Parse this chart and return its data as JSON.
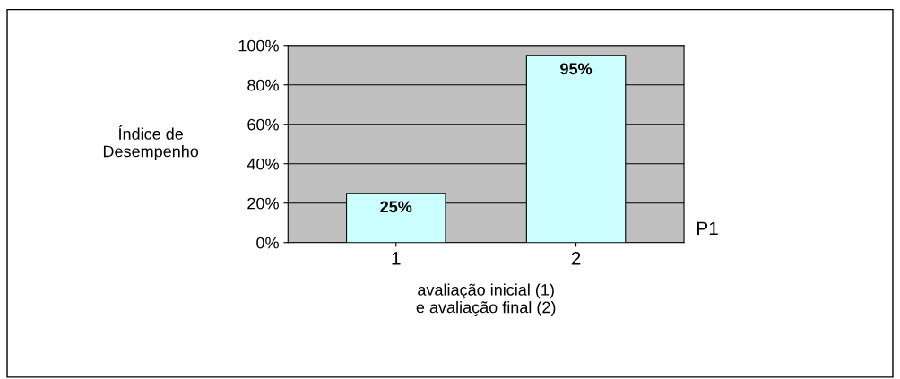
{
  "chart_data": {
    "type": "bar",
    "categories": [
      "1",
      "2"
    ],
    "series": [
      {
        "name": "P1",
        "color": "#ccffff",
        "values": [
          25,
          95
        ],
        "value_labels": [
          "25%",
          "95%"
        ]
      }
    ],
    "ylabel": "Índice de\nDesempenho",
    "xlabel": "avaliação inicial (1)\ne avaliação final (2)",
    "ylim": [
      0,
      100
    ],
    "yticks": [
      {
        "value": 0,
        "label": "0%"
      },
      {
        "value": 20,
        "label": "20%"
      },
      {
        "value": 40,
        "label": "40%"
      },
      {
        "value": 60,
        "label": "60%"
      },
      {
        "value": 80,
        "label": "80%"
      },
      {
        "value": 100,
        "label": "100%"
      }
    ],
    "grid": "y",
    "legend": false
  }
}
